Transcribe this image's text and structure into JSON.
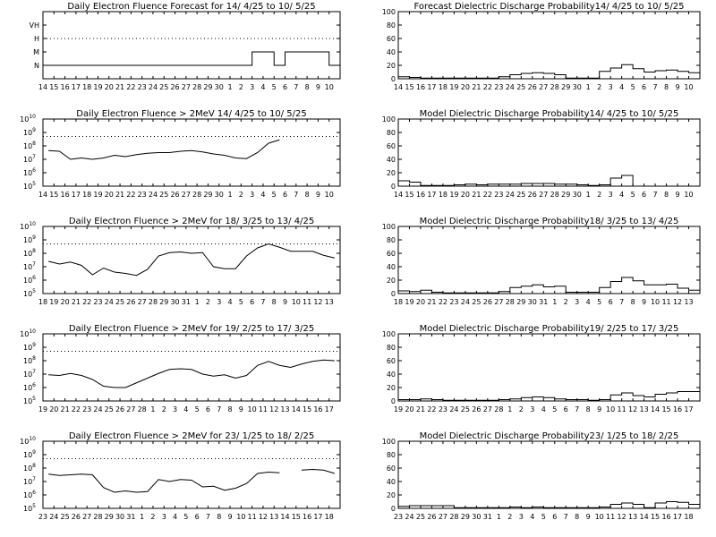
{
  "chart_data": [
    {
      "type": "line",
      "title": "Daily Electron Fluence Forecast for 14/ 4/25 to 10/ 5/25",
      "y_categories": [
        "N",
        "M",
        "H",
        "VH"
      ],
      "threshold_category": "H",
      "x_labels": [
        "14",
        "15",
        "16",
        "17",
        "18",
        "19",
        "20",
        "21",
        "22",
        "23",
        "24",
        "25",
        "26",
        "27",
        "28",
        "29",
        "30",
        "1",
        "2",
        "3",
        "4",
        "5",
        "6",
        "7",
        "8",
        "9",
        "10"
      ],
      "series": [
        {
          "values": [
            "N",
            "N",
            "N",
            "N",
            "N",
            "N",
            "N",
            "N",
            "N",
            "N",
            "N",
            "N",
            "N",
            "N",
            "N",
            "N",
            "N",
            "N",
            "N",
            "M",
            "M",
            "N",
            "M",
            "M",
            "M",
            "M",
            "N"
          ]
        }
      ]
    },
    {
      "type": "bar",
      "title": "Forecast Dielectric Discharge Probability14/ 4/25 to 10/ 5/25",
      "ylim": [
        0,
        100
      ],
      "y_ticks": [
        0,
        20,
        40,
        60,
        80,
        100
      ],
      "x_labels": [
        "14",
        "15",
        "16",
        "17",
        "18",
        "19",
        "20",
        "21",
        "22",
        "23",
        "24",
        "25",
        "26",
        "27",
        "28",
        "29",
        "30",
        "1",
        "2",
        "3",
        "4",
        "5",
        "6",
        "7",
        "8",
        "9",
        "10"
      ],
      "values": [
        3,
        2,
        1,
        1,
        1,
        1,
        1,
        1,
        1,
        3,
        6,
        8,
        9,
        8,
        6,
        1,
        1,
        1,
        11,
        16,
        21,
        15,
        10,
        12,
        13,
        11,
        9
      ]
    },
    {
      "type": "line",
      "title": "Daily Electron Fluence > 2MeV 14/ 4/25 to 10/ 5/25",
      "y_scale": "log",
      "y_ticks": [
        "10^5",
        "10^6",
        "10^7",
        "10^8",
        "10^9",
        "10^10"
      ],
      "threshold": "5x10^8",
      "x_labels": [
        "14",
        "15",
        "16",
        "17",
        "18",
        "19",
        "20",
        "21",
        "22",
        "23",
        "24",
        "25",
        "26",
        "27",
        "28",
        "29",
        "30",
        "1",
        "2",
        "3",
        "4",
        "5",
        "6",
        "7",
        "8",
        "9",
        "10"
      ],
      "series": [
        {
          "log10_values": [
            7.65,
            7.6,
            7.0,
            7.1,
            7.0,
            7.1,
            7.3,
            7.2,
            7.35,
            7.45,
            7.5,
            7.5,
            7.6,
            7.65,
            7.55,
            7.4,
            7.3,
            7.1,
            7.05,
            7.5,
            8.2,
            8.45,
            null,
            null,
            null,
            null,
            null
          ]
        }
      ]
    },
    {
      "type": "bar",
      "title": "Model Dielectric Discharge Probability14/ 4/25 to 10/ 5/25",
      "ylim": [
        0,
        100
      ],
      "y_ticks": [
        0,
        20,
        40,
        60,
        80,
        100
      ],
      "x_labels": [
        "14",
        "15",
        "16",
        "17",
        "18",
        "19",
        "20",
        "21",
        "22",
        "23",
        "24",
        "25",
        "26",
        "27",
        "28",
        "29",
        "30",
        "1",
        "2",
        "3",
        "4",
        "5",
        "6",
        "7",
        "8",
        "9",
        "10"
      ],
      "values": [
        8,
        6,
        1,
        1,
        1,
        2,
        3,
        2,
        3,
        3,
        3,
        4,
        4,
        4,
        3,
        3,
        2,
        1,
        2,
        12,
        16,
        null,
        null,
        null,
        null,
        null,
        null
      ]
    },
    {
      "type": "line",
      "title": "Daily Electron Fluence > 2MeV for 18/ 3/25 to 13/ 4/25",
      "y_scale": "log",
      "y_ticks": [
        "10^5",
        "10^6",
        "10^7",
        "10^8",
        "10^9",
        "10^10"
      ],
      "threshold": "5x10^8",
      "x_labels": [
        "18",
        "19",
        "20",
        "21",
        "22",
        "23",
        "24",
        "25",
        "26",
        "27",
        "28",
        "29",
        "30",
        "31",
        "1",
        "2",
        "3",
        "4",
        "5",
        "6",
        "7",
        "8",
        "9",
        "10",
        "11",
        "12",
        "13"
      ],
      "series": [
        {
          "log10_values": [
            7.4,
            7.2,
            7.35,
            7.1,
            6.4,
            6.9,
            6.6,
            6.5,
            6.35,
            6.8,
            7.8,
            8.05,
            8.1,
            8.0,
            8.05,
            7.0,
            6.85,
            6.85,
            7.8,
            8.4,
            8.7,
            8.45,
            8.15,
            8.15,
            8.15,
            7.85,
            7.65
          ]
        }
      ]
    },
    {
      "type": "bar",
      "title": "Model Dielectric Discharge Probability18/ 3/25 to 13/ 4/25",
      "ylim": [
        0,
        100
      ],
      "y_ticks": [
        0,
        20,
        40,
        60,
        80,
        100
      ],
      "x_labels": [
        "18",
        "19",
        "20",
        "21",
        "22",
        "23",
        "24",
        "25",
        "26",
        "27",
        "28",
        "29",
        "30",
        "31",
        "1",
        "2",
        "3",
        "4",
        "5",
        "6",
        "7",
        "8",
        "9",
        "10",
        "11",
        "12",
        "13"
      ],
      "values": [
        4,
        3,
        5,
        2,
        1,
        1,
        1,
        1,
        1,
        3,
        9,
        11,
        13,
        10,
        11,
        2,
        2,
        2,
        9,
        18,
        24,
        19,
        13,
        13,
        14,
        8,
        5
      ]
    },
    {
      "type": "line",
      "title": "Daily Electron Fluence > 2MeV for 19/ 2/25 to 17/ 3/25",
      "y_scale": "log",
      "y_ticks": [
        "10^5",
        "10^6",
        "10^7",
        "10^8",
        "10^9",
        "10^10"
      ],
      "threshold": "5x10^8",
      "x_labels": [
        "19",
        "20",
        "21",
        "22",
        "23",
        "24",
        "25",
        "26",
        "27",
        "28",
        "1",
        "2",
        "3",
        "4",
        "5",
        "6",
        "7",
        "8",
        "9",
        "10",
        "11",
        "12",
        "13",
        "14",
        "15",
        "16",
        "17"
      ],
      "series": [
        {
          "log10_values": [
            6.95,
            6.9,
            7.05,
            6.9,
            6.6,
            6.1,
            6.0,
            6.0,
            6.35,
            6.7,
            7.05,
            7.35,
            7.4,
            7.35,
            7.0,
            6.85,
            6.95,
            6.7,
            6.9,
            7.65,
            7.95,
            7.65,
            7.5,
            7.75,
            7.95,
            8.05,
            8.0
          ]
        }
      ]
    },
    {
      "type": "bar",
      "title": "Model Dielectric Discharge Probability19/ 2/25 to 17/ 3/25",
      "ylim": [
        0,
        100
      ],
      "y_ticks": [
        0,
        20,
        40,
        60,
        80,
        100
      ],
      "x_labels": [
        "19",
        "20",
        "21",
        "22",
        "23",
        "24",
        "25",
        "26",
        "27",
        "28",
        "1",
        "2",
        "3",
        "4",
        "5",
        "6",
        "7",
        "8",
        "9",
        "10",
        "11",
        "12",
        "13",
        "14",
        "15",
        "16",
        "17"
      ],
      "values": [
        2,
        2,
        3,
        2,
        1,
        1,
        1,
        1,
        1,
        2,
        3,
        5,
        6,
        5,
        3,
        2,
        2,
        1,
        2,
        9,
        12,
        8,
        6,
        10,
        12,
        14,
        14
      ]
    },
    {
      "type": "line",
      "title": "Daily Electron Fluence > 2MeV for 23/ 1/25 to 18/ 2/25",
      "y_scale": "log",
      "y_ticks": [
        "10^5",
        "10^6",
        "10^7",
        "10^8",
        "10^9",
        "10^10"
      ],
      "threshold": "5x10^8",
      "x_labels": [
        "23",
        "24",
        "25",
        "26",
        "27",
        "28",
        "29",
        "30",
        "31",
        "1",
        "2",
        "3",
        "4",
        "5",
        "6",
        "7",
        "8",
        "9",
        "10",
        "11",
        "12",
        "13",
        "14",
        "15",
        "16",
        "17",
        "18"
      ],
      "series": [
        {
          "log10_values": [
            7.55,
            7.45,
            7.5,
            7.55,
            7.5,
            6.55,
            6.2,
            6.3,
            6.2,
            6.25,
            7.15,
            7.0,
            7.15,
            7.1,
            6.6,
            6.65,
            6.35,
            6.5,
            6.85,
            7.6,
            7.7,
            7.65,
            null,
            7.85,
            7.9,
            7.85,
            7.6
          ]
        }
      ]
    },
    {
      "type": "bar",
      "title": "Model Dielectric Discharge Probability23/ 1/25 to 18/ 2/25",
      "ylim": [
        0,
        100
      ],
      "y_ticks": [
        0,
        20,
        40,
        60,
        80,
        100
      ],
      "x_labels": [
        "23",
        "24",
        "25",
        "26",
        "27",
        "28",
        "29",
        "30",
        "31",
        "1",
        "2",
        "3",
        "4",
        "5",
        "6",
        "7",
        "8",
        "9",
        "10",
        "11",
        "12",
        "13",
        "14",
        "15",
        "16",
        "17",
        "18"
      ],
      "values": [
        3,
        4,
        4,
        4,
        4,
        1,
        1,
        1,
        1,
        1,
        2,
        1,
        2,
        1,
        1,
        1,
        1,
        1,
        2,
        6,
        8,
        6,
        1,
        8,
        10,
        9,
        6
      ]
    }
  ]
}
